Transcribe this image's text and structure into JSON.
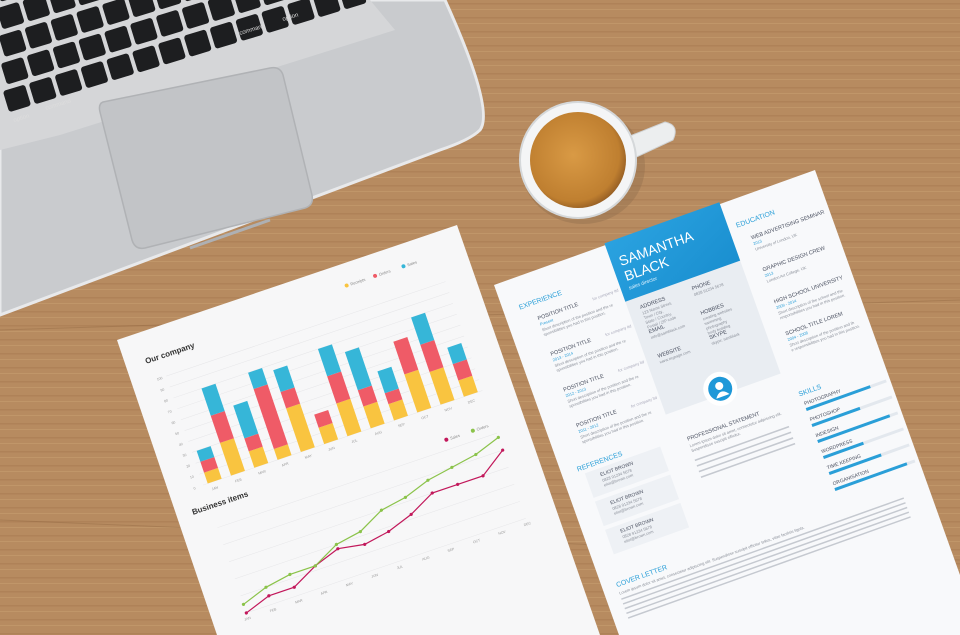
{
  "laptop": {
    "keys": [
      "option",
      "command",
      "command",
      "option"
    ]
  },
  "report": {
    "chart_data": [
      {
        "type": "bar",
        "title": "Our company",
        "categories": [
          "JAN",
          "FEB",
          "MAR",
          "APR",
          "MAY",
          "JUN",
          "JUL",
          "AUG",
          "SEP",
          "OCT",
          "NOV",
          "DEC"
        ],
        "stacked": true,
        "ylim": [
          0,
          100
        ],
        "yticks": [
          0,
          10,
          20,
          30,
          40,
          50,
          60,
          70,
          80,
          90,
          100
        ],
        "legend": "top-right",
        "series": [
          {
            "name": "Receipts",
            "color": "#f9c440",
            "values": [
              10,
              30,
              15,
              10,
              40,
              15,
              30,
              20,
              15,
              35,
              30,
              15
            ]
          },
          {
            "name": "Orders",
            "color": "#ef5b67",
            "values": [
              10,
              25,
              12,
              55,
              15,
              12,
              25,
              15,
              10,
              30,
              25,
              15
            ]
          },
          {
            "name": "Sales",
            "color": "#36b6d8",
            "values": [
              10,
              25,
              30,
              15,
              20,
              0,
              25,
              35,
              20,
              0,
              25,
              15
            ]
          }
        ]
      },
      {
        "type": "line",
        "title": "Business items",
        "categories": [
          "JAN",
          "FEB",
          "MAR",
          "APR",
          "MAY",
          "JUN",
          "JUL",
          "AUG",
          "SEP",
          "OCT",
          "NOV",
          "DEC"
        ],
        "ylim": [
          0,
          100
        ],
        "legend": "top-right",
        "series": [
          {
            "name": "Sales",
            "color": "#c2185b",
            "values": [
              0,
              10,
              10,
              25,
              35,
              30,
              35,
              45,
              60,
              60,
              60,
              80
            ]
          },
          {
            "name": "Orders",
            "color": "#8bc34a",
            "values": [
              10,
              20,
              25,
              25,
              40,
              45,
              60,
              65,
              75,
              80,
              85,
              95
            ]
          }
        ]
      }
    ]
  },
  "resume": {
    "first_name": "SAMANTHA",
    "last_name": "BLACK",
    "role": "sales director",
    "experience_heading": "EXPERIENCE",
    "experience": [
      {
        "title": "POSITION TITLE",
        "company": "for company ltd",
        "years": "Present",
        "desc": "Short description of the position and the responsibilities you had in this position."
      },
      {
        "title": "POSITION TITLE",
        "company": "for company ltd",
        "years": "2013 - 2014",
        "desc": "Short description of the position and the responsibilities you had in this position."
      },
      {
        "title": "POSITION TITLE",
        "company": "for company ltd",
        "years": "2012 - 2013",
        "desc": "Short description of the position and the responsibilities you had in this position."
      },
      {
        "title": "POSITION TITLE",
        "company": "for company ltd",
        "years": "2011 - 2012",
        "desc": "Short description of the position and the responsibilities you had in this position."
      }
    ],
    "contact": [
      {
        "label": "ADDRESS",
        "lines": [
          "123 Name Street,",
          "Town / City,",
          "State / Country,",
          "Postal / ZIP code"
        ]
      },
      {
        "label": "PHONE",
        "lines": [
          "0828 91234 5678"
        ]
      },
      {
        "label": "EMAIL",
        "lines": [
          "info@samblack.com"
        ]
      },
      {
        "label": "HOBBIES",
        "lines": [
          "creating websites",
          "swimming",
          "photography",
          "body building"
        ]
      },
      {
        "label": "WEBSITE",
        "lines": [
          "www.mypage.com"
        ]
      },
      {
        "label": "SKYPE",
        "lines": [
          "skype: samblack"
        ]
      }
    ],
    "education_heading": "EDUCATION",
    "education": [
      {
        "title": "WEB ADVERTISING SEMINAR",
        "years": "2013",
        "place": "University of London, UK"
      },
      {
        "title": "GRAPHIC DESIGN CREW",
        "years": "2013",
        "place": "London Art College, UK"
      },
      {
        "title": "HIGH SCHOOL UNIVERSITY",
        "years": "2009 - 2014",
        "place": "Short description of the school and the responsibilities you had in this position."
      },
      {
        "title": "SCHOOL TITLE LOREM",
        "years": "2004 - 2008",
        "place": "Short description of the position and the responsibilities you had in this position."
      }
    ],
    "statement_heading": "PROFESSIONAL STATEMENT",
    "statement_text": "Lorem ipsum dolor sit amet, consectetur adipiscing elit. Suspendisse suscipit efficitur.",
    "skills_heading": "SKILLS",
    "skills": [
      {
        "name": "PHOTOGRAPHY",
        "level": 0.8
      },
      {
        "name": "PHOTOSHOP",
        "level": 0.6
      },
      {
        "name": "INDESIGN",
        "level": 0.9
      },
      {
        "name": "WORDPRESS",
        "level": 0.5
      },
      {
        "name": "TIME KEEPING",
        "level": 0.65
      },
      {
        "name": "ORGANISATION",
        "level": 0.9
      }
    ],
    "references_heading": "REFERENCES",
    "references": [
      {
        "name": "ELIOT BROWN",
        "phone": "0828 91234 5678",
        "email": "eliot@brown.com"
      },
      {
        "name": "ELIOT BROWN",
        "phone": "0828 91234 5678",
        "email": "eliot@brown.com"
      },
      {
        "name": "ELIOT BROWN",
        "phone": "0828 91234 5678",
        "email": "eliot@brown.com"
      }
    ],
    "cover_heading": "COVER LETTER",
    "cover_text": "Lorem ipsum dolor sit amet, consectetur adipiscing elit. Suspendisse suscipit efficitur tellus, vitae facilisis ligula."
  },
  "colors": {
    "wood": "#b68a5f",
    "accent": "#2a9fd8",
    "coffee": "#c68a3a"
  }
}
